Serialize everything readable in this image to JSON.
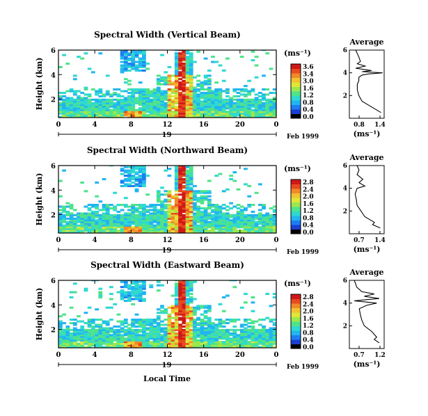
{
  "x_axis_label": "Local Time",
  "date_label": "Feb 1999",
  "day_label": "19",
  "units_label": "(ms⁻¹)",
  "y_axis_label": "Height (km)",
  "profile_title": "Average",
  "x_ticks": [
    "0",
    "4",
    "8",
    "12",
    "16",
    "20",
    "0"
  ],
  "y_ticks": [
    "2",
    "4",
    "6"
  ],
  "colormap": [
    "#1a1a80",
    "#1b3fd0",
    "#1e7cf2",
    "#22b5f0",
    "#2fd9d0",
    "#4fe38a",
    "#9be84c",
    "#dfe73a",
    "#f2c230",
    "#f08a28",
    "#e84a20",
    "#d01818"
  ],
  "panels": [
    {
      "title": "Spectral Width (Vertical Beam)",
      "colorbar_ticks": [
        "3.6",
        "3.4",
        "3.0",
        "1.6",
        "1.2",
        "0.8",
        "0.4",
        "0.0"
      ],
      "profile_xticks": [
        "0.8",
        "1.4"
      ]
    },
    {
      "title": "Spectral Width (Northward Beam)",
      "colorbar_ticks": [
        "2.8",
        "2.4",
        "2.0",
        "1.6",
        "1.2",
        "0.8",
        "0.4",
        "0.0"
      ],
      "profile_xticks": [
        "0.7",
        "1.4"
      ]
    },
    {
      "title": "Spectral Width (Eastward Beam)",
      "colorbar_ticks": [
        "2.8",
        "2.4",
        "2.0",
        "1.6",
        "1.2",
        "0.8",
        "0.4",
        "0.0"
      ],
      "profile_xticks": [
        "0.7",
        "1.2"
      ]
    }
  ],
  "chart_data": [
    {
      "type": "heatmap",
      "title": "Spectral Width (Vertical Beam)",
      "xlabel": "",
      "ylabel": "Height (km)",
      "xlim": [
        0,
        24
      ],
      "ylim": [
        0.5,
        6
      ],
      "clim": [
        0.0,
        3.6
      ],
      "profile": {
        "title": "Average",
        "xlabel": "(ms⁻¹)",
        "xlim": [
          0.5,
          1.6
        ],
        "ylim": [
          0,
          6
        ],
        "heights": [
          0.5,
          1.0,
          1.5,
          2.0,
          2.5,
          3.0,
          3.3,
          3.6,
          3.8,
          3.9,
          4.0,
          4.1,
          4.2,
          4.4,
          4.6,
          4.8,
          5.0,
          5.4,
          6.0
        ],
        "values": [
          1.5,
          1.2,
          0.9,
          0.8,
          0.75,
          0.75,
          0.8,
          0.8,
          0.9,
          1.1,
          1.55,
          0.9,
          1.2,
          0.7,
          1.0,
          0.75,
          0.85,
          0.8,
          0.7
        ]
      }
    },
    {
      "type": "heatmap",
      "title": "Spectral Width (Northward Beam)",
      "xlabel": "",
      "ylabel": "Height (km)",
      "xlim": [
        0,
        24
      ],
      "ylim": [
        0.5,
        6
      ],
      "clim": [
        0.0,
        2.8
      ],
      "profile": {
        "title": "Average",
        "xlabel": "(ms⁻¹)",
        "xlim": [
          0.6,
          1.5
        ],
        "ylim": [
          0,
          6
        ],
        "heights": [
          0.5,
          0.8,
          1.0,
          1.5,
          2.0,
          2.5,
          3.0,
          3.5,
          4.0,
          4.2,
          4.5,
          4.8,
          5.2,
          5.6,
          6.0
        ],
        "values": [
          1.4,
          1.2,
          1.25,
          1.0,
          0.9,
          0.8,
          0.78,
          0.75,
          0.8,
          1.0,
          0.85,
          0.95,
          0.8,
          0.85,
          0.8
        ]
      }
    },
    {
      "type": "heatmap",
      "title": "Spectral Width (Eastward Beam)",
      "xlabel": "Local Time",
      "ylabel": "Height (km)",
      "xlim": [
        0,
        24
      ],
      "ylim": [
        0.5,
        6
      ],
      "clim": [
        0.0,
        2.8
      ],
      "profile": {
        "title": "Average",
        "xlabel": "(ms⁻¹)",
        "xlim": [
          0.6,
          1.3
        ],
        "ylim": [
          0,
          6
        ],
        "heights": [
          0.5,
          0.8,
          1.0,
          1.5,
          2.0,
          2.5,
          3.0,
          3.5,
          3.8,
          4.0,
          4.2,
          4.4,
          4.6,
          4.8,
          5.0,
          5.4,
          6.0
        ],
        "values": [
          1.2,
          1.1,
          1.15,
          1.05,
          0.9,
          0.85,
          0.82,
          0.8,
          0.95,
          1.15,
          0.7,
          1.2,
          0.9,
          1.1,
          0.85,
          0.75,
          0.7
        ]
      }
    }
  ]
}
